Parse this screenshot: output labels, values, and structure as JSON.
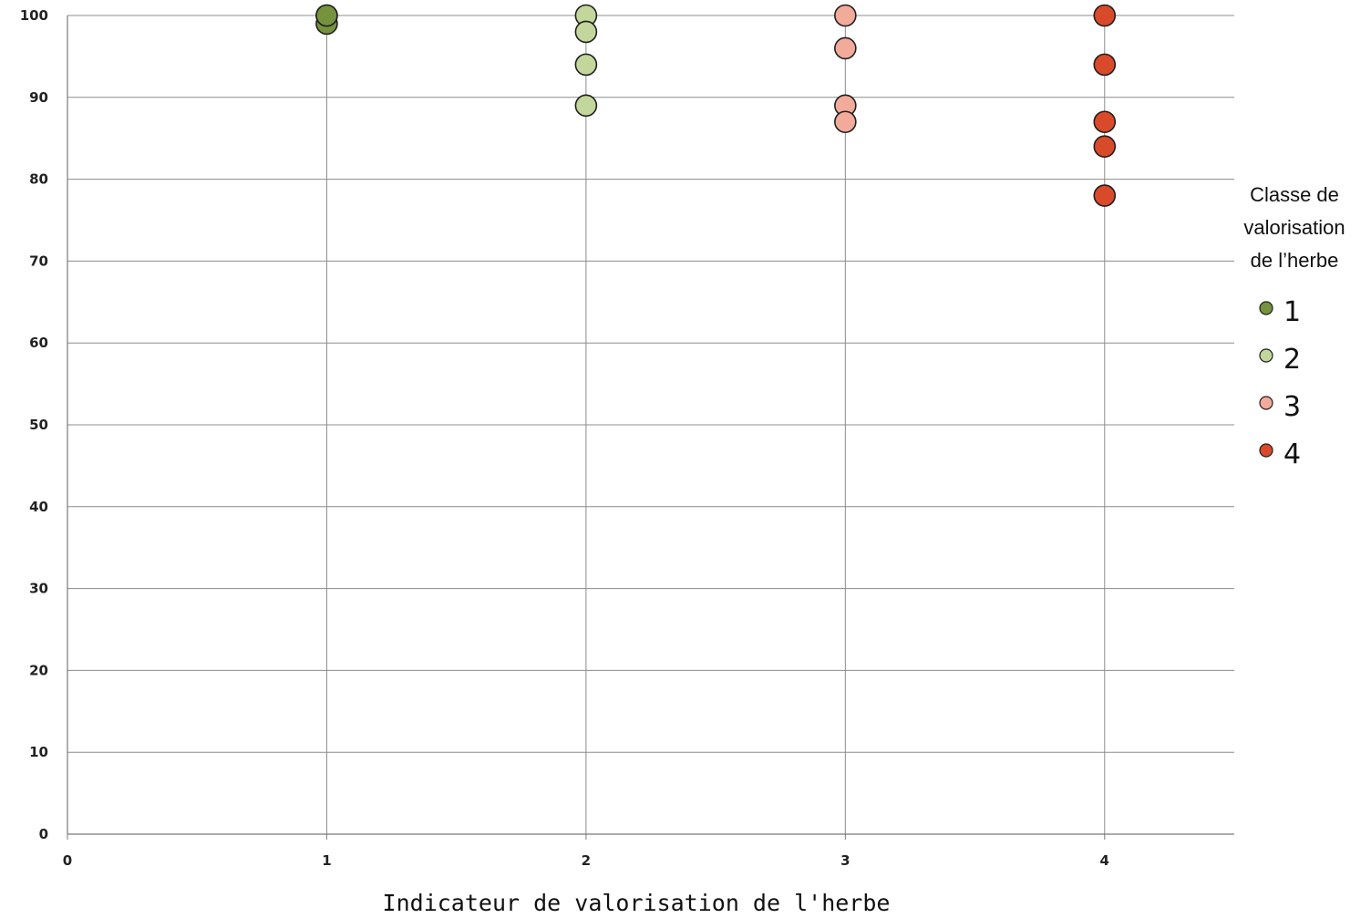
{
  "chart_data": {
    "type": "scatter",
    "title": "",
    "xlabel": "Indicateur de valorisation de l'herbe",
    "ylabel": "",
    "xlim": [
      0,
      4.5
    ],
    "ylim": [
      0,
      100
    ],
    "x_ticks": [
      "0",
      "1",
      "2",
      "3",
      "4"
    ],
    "y_ticks": [
      "0",
      "10",
      "20",
      "30",
      "40",
      "50",
      "60",
      "70",
      "80",
      "90",
      "100"
    ],
    "grid": "horizontal and vertical at ticks",
    "legend": {
      "title_lines": [
        "Classe de",
        "valorisation",
        "de l’herbe"
      ],
      "placement": "right"
    },
    "series": [
      {
        "name": "1",
        "color": "#76923c",
        "x": [
          1,
          1,
          1
        ],
        "y": [
          99,
          100,
          100
        ]
      },
      {
        "name": "2",
        "color": "#c3d69b",
        "x": [
          2,
          2,
          2,
          2
        ],
        "y": [
          100,
          98,
          94,
          89
        ]
      },
      {
        "name": "3",
        "color": "#f2aa9a",
        "x": [
          3,
          3,
          3,
          3
        ],
        "y": [
          100,
          96,
          89,
          87
        ]
      },
      {
        "name": "4",
        "color": "#d94a2b",
        "x": [
          4,
          4,
          4,
          4,
          4
        ],
        "y": [
          100,
          94,
          87,
          84,
          78
        ]
      }
    ]
  }
}
